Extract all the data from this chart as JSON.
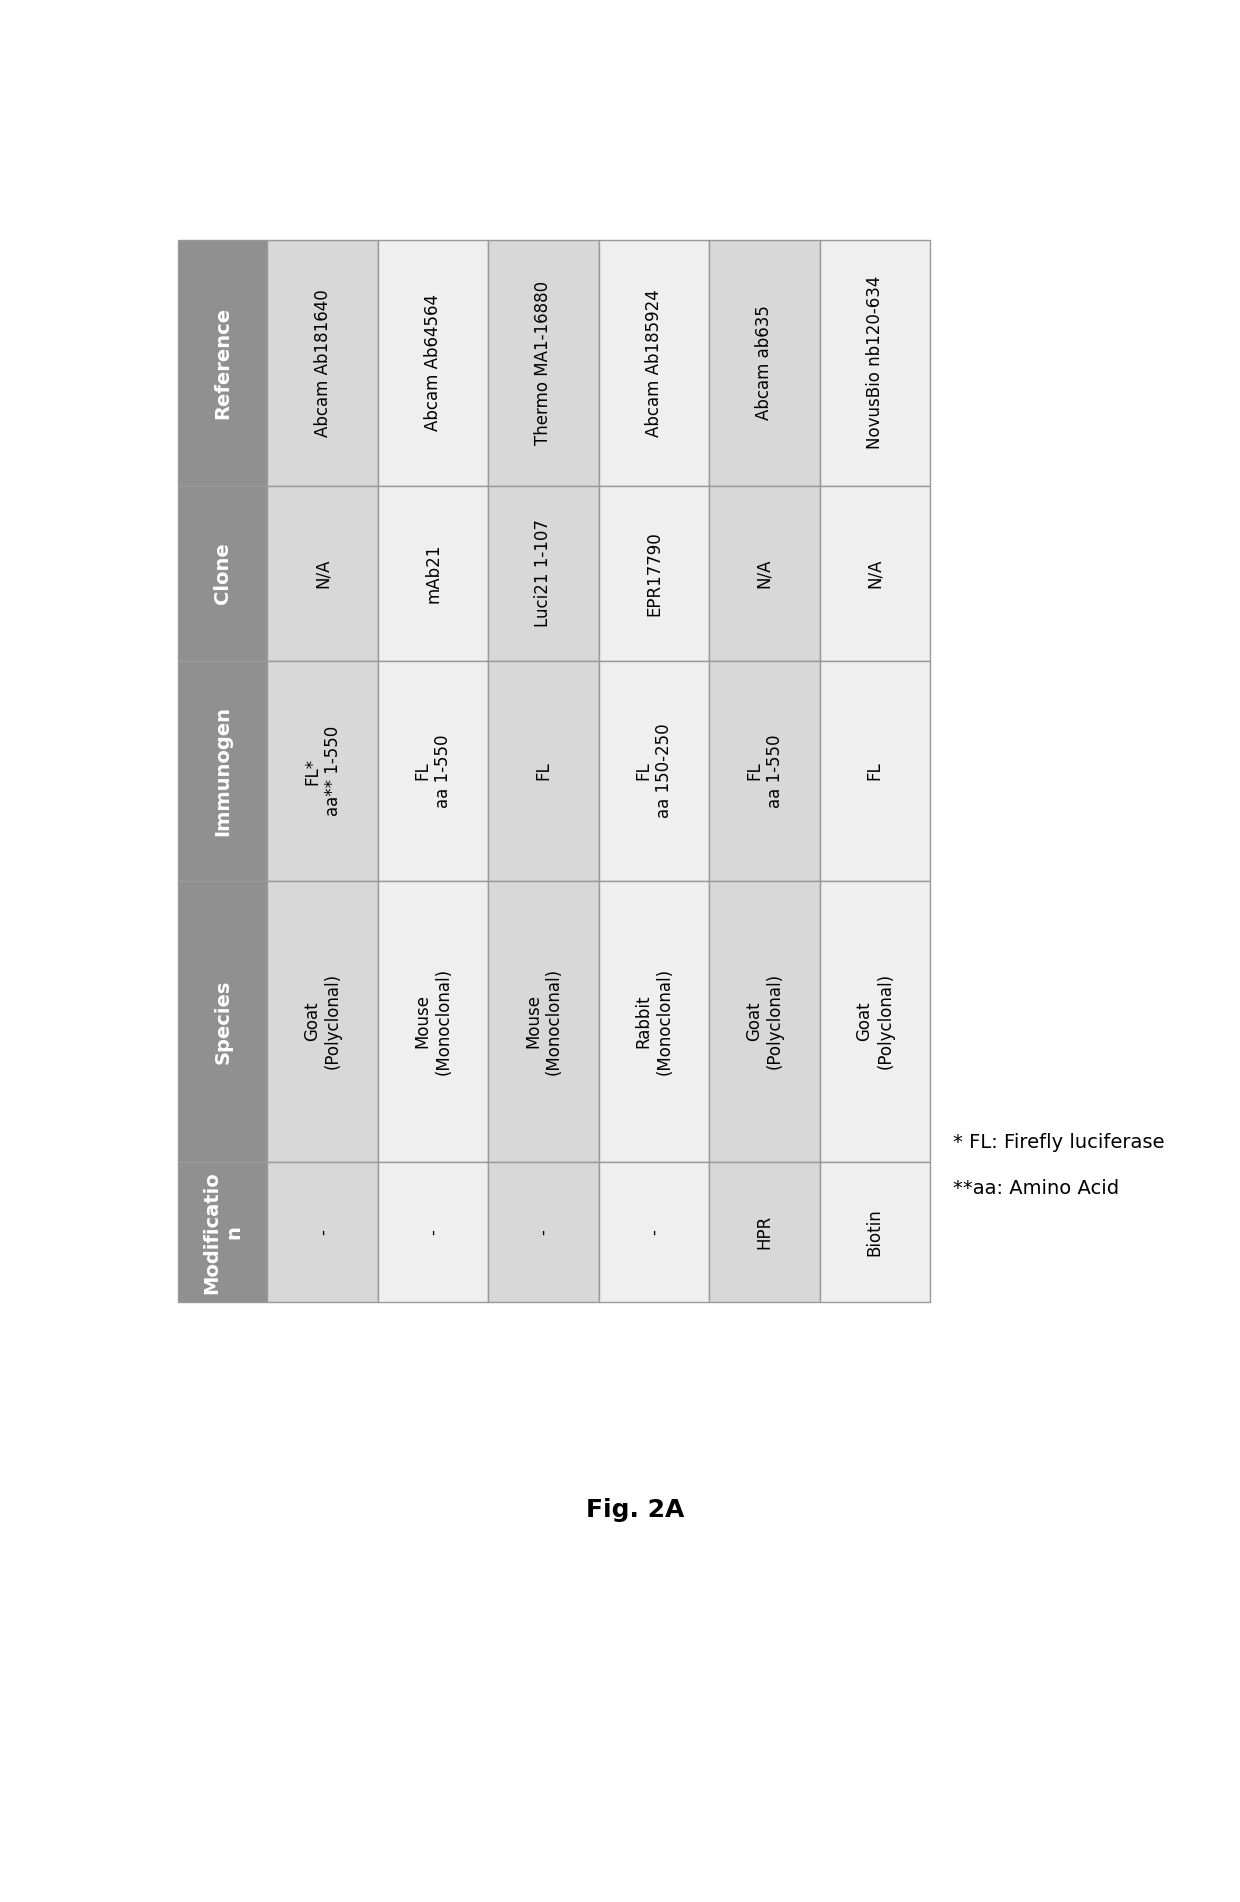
{
  "row_headers": [
    "Reference",
    "Clone",
    "Immunogen",
    "Species",
    "Modificatio\nn"
  ],
  "col_header_bg": "#909090",
  "col_header_text": "#ffffff",
  "row_bg_even": "#d8d8d8",
  "row_bg_odd": "#efefef",
  "border_color": "#999999",
  "cols": [
    {
      "reference": "Abcam Ab181640",
      "clone": "N/A",
      "immunogen": "FL*\naa** 1-550",
      "species": "Goat\n(Polyclonal)",
      "modification": "-"
    },
    {
      "reference": "Abcam Ab64564",
      "clone": "mAb21",
      "immunogen": "FL\naa 1-550",
      "species": "Mouse\n(Monoclonal)",
      "modification": "-"
    },
    {
      "reference": "Thermo MA1-16880",
      "clone": "Luci21 1-107",
      "immunogen": "FL",
      "species": "Mouse\n(Monoclonal)",
      "modification": "-"
    },
    {
      "reference": "Abcam Ab185924",
      "clone": "EPR17790",
      "immunogen": "FL\naa 150-250",
      "species": "Rabbit\n(Monoclonal)",
      "modification": "-"
    },
    {
      "reference": "Abcam ab635",
      "clone": "N/A",
      "immunogen": "FL\naa 1-550",
      "species": "Goat\n(Polyclonal)",
      "modification": "HPR"
    },
    {
      "reference": "NovusBio nb120-634",
      "clone": "N/A",
      "immunogen": "FL",
      "species": "Goat\n(Polyclonal)",
      "modification": "Biotin"
    }
  ],
  "row_fields": [
    "reference",
    "clone",
    "immunogen",
    "species",
    "modification"
  ],
  "footnote1": "* FL: Firefly luciferase",
  "footnote2": "**aa: Amino Acid",
  "fig_label": "Fig. 2A"
}
